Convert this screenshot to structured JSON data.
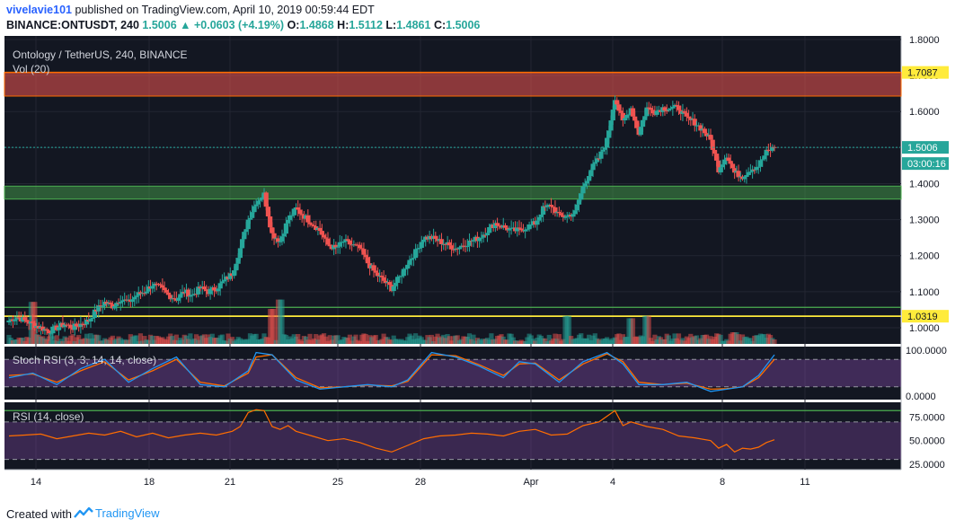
{
  "header": {
    "author": "vivelavie101",
    "published_text": "published on TradingView.com, April 10, 2019 00:59:44 EDT",
    "symbol": "BINANCE:ONTUSDT, 240",
    "change": "1.5006",
    "change_arrow": "▲",
    "change_delta": "+0.0603 (+4.19%)",
    "o_label": "O:",
    "o_value": "1.4868",
    "h_label": "H:",
    "h_value": "1.5112",
    "l_label": "L:",
    "l_value": "1.4861",
    "c_label": "C:",
    "c_value": "1.5006"
  },
  "footer": {
    "created_with": "Created with",
    "brand": "TradingView"
  },
  "colors": {
    "bg": "#131722",
    "up": "#26a69a",
    "down": "#ef5350",
    "resistance": "#ff6d00",
    "support_green": "#4caf50",
    "support_yellow": "#ffeb3b",
    "stoch_k": "#2196f3",
    "stoch_d": "#ff6d00",
    "rsi": "#ff6d00"
  },
  "chart_data": [
    {
      "type": "candlestick",
      "title": "Ontology / TetherUS, 240, BINANCE",
      "volume_label": "Vol (20)",
      "ylim": [
        0.955,
        1.81
      ],
      "yticks": [
        "1.8000",
        "1.7000",
        "1.6000",
        "1.5000",
        "1.4000",
        "1.3000",
        "1.2000",
        "1.1000",
        "1.0000"
      ],
      "x_ticks": [
        "14",
        "18",
        "21",
        "25",
        "28",
        "Apr",
        "4",
        "8",
        "11"
      ],
      "price_labels": {
        "resistance": "1.7087",
        "last": "1.5006",
        "countdown": "03:00:16",
        "support": "1.0319"
      },
      "zones": [
        {
          "name": "resistance",
          "from": 1.643,
          "to": 1.7087
        },
        {
          "name": "support",
          "from": 1.357,
          "to": 1.393
        }
      ],
      "lines": [
        {
          "name": "support-green",
          "value": 1.0565
        },
        {
          "name": "support-yellow",
          "value": 1.0319
        }
      ],
      "anchors": [
        [
          0,
          1.02
        ],
        [
          1,
          1.03
        ],
        [
          2,
          1.02
        ],
        [
          3,
          1.01
        ],
        [
          4,
          1.0
        ],
        [
          5,
          0.99
        ],
        [
          6,
          1.0
        ],
        [
          7,
          1.01
        ],
        [
          8,
          1.0
        ],
        [
          9,
          1.01
        ],
        [
          10,
          1.02
        ],
        [
          11,
          1.05
        ],
        [
          12,
          1.07
        ],
        [
          13,
          1.06
        ],
        [
          14,
          1.08
        ],
        [
          15,
          1.07
        ],
        [
          16,
          1.09
        ],
        [
          17,
          1.1
        ],
        [
          18,
          1.12
        ],
        [
          19,
          1.11
        ],
        [
          20,
          1.09
        ],
        [
          21,
          1.08
        ],
        [
          22,
          1.1
        ],
        [
          23,
          1.09
        ],
        [
          24,
          1.11
        ],
        [
          25,
          1.1
        ],
        [
          26,
          1.11
        ],
        [
          27,
          1.13
        ],
        [
          28,
          1.15
        ],
        [
          29,
          1.22
        ],
        [
          30,
          1.3
        ],
        [
          31,
          1.35
        ],
        [
          32,
          1.37
        ],
        [
          33,
          1.26
        ],
        [
          34,
          1.24
        ],
        [
          35,
          1.3
        ],
        [
          36,
          1.33
        ],
        [
          37,
          1.31
        ],
        [
          38,
          1.29
        ],
        [
          39,
          1.27
        ],
        [
          40,
          1.23
        ],
        [
          41,
          1.22
        ],
        [
          42,
          1.24
        ],
        [
          43,
          1.23
        ],
        [
          44,
          1.22
        ],
        [
          45,
          1.18
        ],
        [
          46,
          1.15
        ],
        [
          47,
          1.13
        ],
        [
          48,
          1.11
        ],
        [
          49,
          1.14
        ],
        [
          50,
          1.18
        ],
        [
          51,
          1.21
        ],
        [
          52,
          1.25
        ],
        [
          53,
          1.25
        ],
        [
          54,
          1.24
        ],
        [
          55,
          1.23
        ],
        [
          56,
          1.22
        ],
        [
          57,
          1.23
        ],
        [
          58,
          1.24
        ],
        [
          59,
          1.25
        ],
        [
          60,
          1.27
        ],
        [
          61,
          1.29
        ],
        [
          62,
          1.28
        ],
        [
          63,
          1.27
        ],
        [
          64,
          1.27
        ],
        [
          65,
          1.28
        ],
        [
          66,
          1.29
        ],
        [
          67,
          1.33
        ],
        [
          68,
          1.34
        ],
        [
          69,
          1.31
        ],
        [
          70,
          1.31
        ],
        [
          71,
          1.32
        ],
        [
          72,
          1.39
        ],
        [
          73,
          1.44
        ],
        [
          74,
          1.47
        ],
        [
          75,
          1.52
        ],
        [
          76,
          1.64
        ],
        [
          77,
          1.57
        ],
        [
          78,
          1.61
        ],
        [
          79,
          1.54
        ],
        [
          80,
          1.61
        ],
        [
          81,
          1.6
        ],
        [
          82,
          1.61
        ],
        [
          83,
          1.61
        ],
        [
          84,
          1.61
        ],
        [
          85,
          1.58
        ],
        [
          86,
          1.57
        ],
        [
          87,
          1.55
        ],
        [
          88,
          1.52
        ],
        [
          89,
          1.44
        ],
        [
          90,
          1.48
        ],
        [
          91,
          1.43
        ],
        [
          92,
          1.42
        ],
        [
          93,
          1.44
        ],
        [
          94,
          1.45
        ],
        [
          95,
          1.4868
        ],
        [
          96,
          1.5006
        ]
      ],
      "volume": {
        "spikes": [
          [
            3,
            0.9
          ],
          [
            33,
            0.75
          ],
          [
            34,
            0.95
          ],
          [
            70,
            0.6
          ],
          [
            78,
            0.55
          ],
          [
            80,
            0.6
          ],
          [
            91,
            0.25
          ]
        ]
      },
      "stoch_rsi": {
        "label": "Stoch RSI (3, 3, 14, 14, close)",
        "yticks": [
          "100.0000",
          "0.0000"
        ],
        "bands": [
          80,
          20
        ],
        "k": [
          [
            0,
            40
          ],
          [
            3,
            50
          ],
          [
            6,
            25
          ],
          [
            9,
            60
          ],
          [
            12,
            80
          ],
          [
            15,
            30
          ],
          [
            18,
            60
          ],
          [
            21,
            85
          ],
          [
            24,
            25
          ],
          [
            27,
            20
          ],
          [
            30,
            55
          ],
          [
            31,
            95
          ],
          [
            33,
            90
          ],
          [
            36,
            35
          ],
          [
            39,
            15
          ],
          [
            42,
            20
          ],
          [
            45,
            25
          ],
          [
            48,
            20
          ],
          [
            50,
            35
          ],
          [
            53,
            95
          ],
          [
            56,
            85
          ],
          [
            59,
            65
          ],
          [
            62,
            40
          ],
          [
            64,
            75
          ],
          [
            66,
            70
          ],
          [
            69,
            30
          ],
          [
            72,
            75
          ],
          [
            75,
            95
          ],
          [
            77,
            70
          ],
          [
            79,
            25
          ],
          [
            82,
            25
          ],
          [
            85,
            30
          ],
          [
            88,
            10
          ],
          [
            90,
            15
          ],
          [
            92,
            20
          ],
          [
            94,
            45
          ],
          [
            96,
            90
          ]
        ],
        "d": [
          [
            0,
            45
          ],
          [
            3,
            48
          ],
          [
            6,
            30
          ],
          [
            9,
            55
          ],
          [
            12,
            75
          ],
          [
            15,
            35
          ],
          [
            18,
            55
          ],
          [
            21,
            80
          ],
          [
            24,
            30
          ],
          [
            27,
            22
          ],
          [
            30,
            50
          ],
          [
            31,
            85
          ],
          [
            33,
            90
          ],
          [
            36,
            40
          ],
          [
            39,
            18
          ],
          [
            42,
            20
          ],
          [
            45,
            24
          ],
          [
            48,
            22
          ],
          [
            50,
            32
          ],
          [
            53,
            90
          ],
          [
            56,
            88
          ],
          [
            59,
            68
          ],
          [
            62,
            45
          ],
          [
            64,
            70
          ],
          [
            66,
            72
          ],
          [
            69,
            35
          ],
          [
            72,
            70
          ],
          [
            75,
            92
          ],
          [
            77,
            75
          ],
          [
            79,
            30
          ],
          [
            82,
            25
          ],
          [
            85,
            28
          ],
          [
            88,
            15
          ],
          [
            90,
            16
          ],
          [
            92,
            20
          ],
          [
            94,
            40
          ],
          [
            96,
            80
          ]
        ]
      },
      "rsi": {
        "label": "RSI (14, close)",
        "yticks": [
          "75.0000",
          "50.0000",
          "25.0000"
        ],
        "bands": [
          70,
          30
        ],
        "values": [
          [
            0,
            55
          ],
          [
            2,
            56
          ],
          [
            4,
            57
          ],
          [
            6,
            52
          ],
          [
            8,
            55
          ],
          [
            10,
            58
          ],
          [
            12,
            56
          ],
          [
            14,
            60
          ],
          [
            16,
            54
          ],
          [
            18,
            58
          ],
          [
            20,
            53
          ],
          [
            22,
            56
          ],
          [
            24,
            58
          ],
          [
            26,
            56
          ],
          [
            28,
            60
          ],
          [
            29,
            65
          ],
          [
            30,
            80
          ],
          [
            31,
            83
          ],
          [
            32,
            82
          ],
          [
            33,
            65
          ],
          [
            34,
            62
          ],
          [
            35,
            66
          ],
          [
            36,
            60
          ],
          [
            38,
            55
          ],
          [
            40,
            50
          ],
          [
            42,
            52
          ],
          [
            44,
            48
          ],
          [
            46,
            42
          ],
          [
            48,
            38
          ],
          [
            50,
            45
          ],
          [
            52,
            52
          ],
          [
            54,
            55
          ],
          [
            56,
            56
          ],
          [
            58,
            58
          ],
          [
            60,
            57
          ],
          [
            62,
            55
          ],
          [
            64,
            60
          ],
          [
            66,
            62
          ],
          [
            68,
            56
          ],
          [
            70,
            57
          ],
          [
            72,
            66
          ],
          [
            74,
            70
          ],
          [
            76,
            82
          ],
          [
            77,
            66
          ],
          [
            78,
            70
          ],
          [
            80,
            65
          ],
          [
            82,
            62
          ],
          [
            84,
            55
          ],
          [
            86,
            53
          ],
          [
            88,
            50
          ],
          [
            89,
            42
          ],
          [
            90,
            46
          ],
          [
            91,
            38
          ],
          [
            92,
            42
          ],
          [
            93,
            41
          ],
          [
            94,
            43
          ],
          [
            95,
            48
          ],
          [
            96,
            51
          ]
        ]
      }
    }
  ]
}
